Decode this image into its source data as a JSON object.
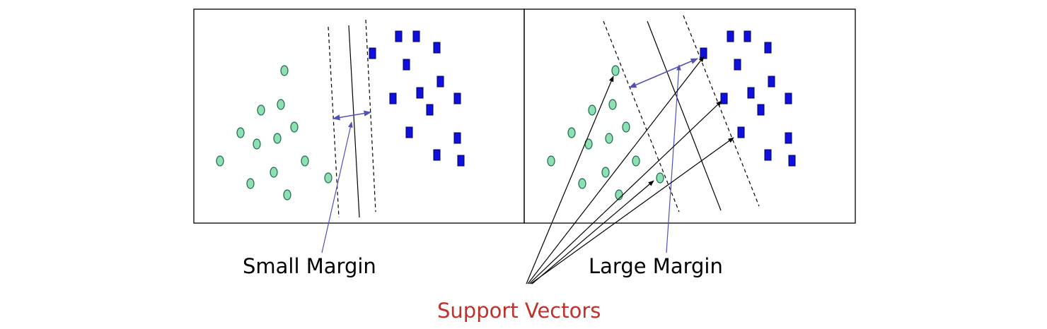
{
  "captions": {
    "small_margin": "Small Margin",
    "large_margin": "Large Margin",
    "support_vectors": "Support Vectors"
  },
  "colors": {
    "circle_fill": "#8ee0b4",
    "circle_stroke": "#1f6b47",
    "square_fill": "#1010dd",
    "square_stroke": "#00005a",
    "margin_arrow": "#5050bb",
    "support_caption": "#c0312b"
  },
  "panels": [
    {
      "name": "small-margin-panel",
      "margin": "small"
    },
    {
      "name": "large-margin-panel",
      "margin": "large"
    }
  ]
}
